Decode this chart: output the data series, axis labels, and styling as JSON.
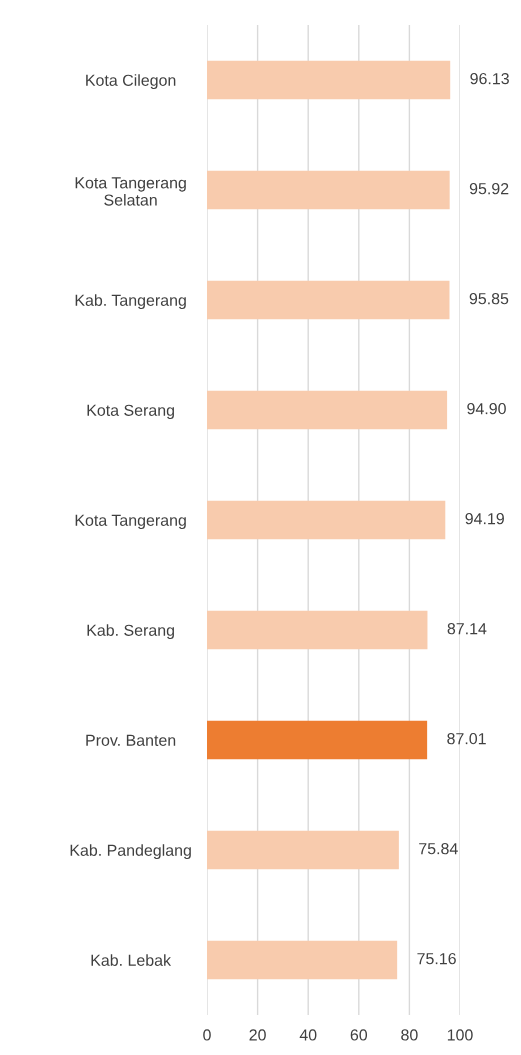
{
  "chart_data": {
    "type": "bar",
    "orientation": "horizontal",
    "categories": [
      "Kota Cilegon",
      "Kota Tangerang\nSelatan",
      "Kab. Tangerang",
      "Kota Serang",
      "Kota Tangerang",
      "Kab. Serang",
      "Prov. Banten",
      "Kab. Pandeglang",
      "Kab. Lebak"
    ],
    "values": [
      96.13,
      95.92,
      95.85,
      94.9,
      94.19,
      87.14,
      87.01,
      75.84,
      75.16
    ],
    "value_labels": [
      "96.13",
      "95.92",
      "95.85",
      "94.90",
      "94.19",
      "87.14",
      "87.01",
      "75.84",
      "75.16"
    ],
    "colors": [
      "#f8cbad",
      "#f8cbad",
      "#f8cbad",
      "#f8cbad",
      "#f8cbad",
      "#f8cbad",
      "#ed7d31",
      "#f8cbad",
      "#f8cbad"
    ],
    "xlim": [
      0,
      100
    ],
    "xticks": [
      0,
      20,
      40,
      60,
      80,
      100
    ],
    "grid": "x"
  }
}
